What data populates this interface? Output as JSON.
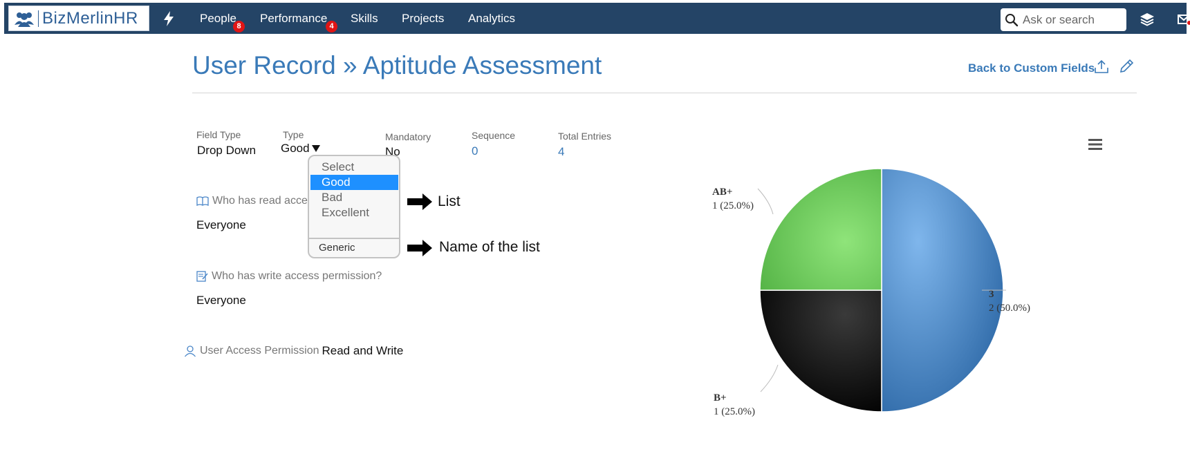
{
  "navbar": {
    "brand": "BizMerlinHR",
    "items": [
      {
        "label": "People",
        "badge": "8"
      },
      {
        "label": "Performance",
        "badge": "4"
      },
      {
        "label": "Skills"
      },
      {
        "label": "Projects"
      },
      {
        "label": "Analytics"
      }
    ],
    "search_placeholder": "Ask or search",
    "bg_color": "#244466"
  },
  "header": {
    "title": "User Record » Aptitude Assessment",
    "back_link": "Back to Custom Fields"
  },
  "field": {
    "field_type_label": "Field Type",
    "field_type_value": "Drop Down",
    "type_label": "Type",
    "type_value": "Good",
    "mandatory_label": "Mandatory",
    "mandatory_value": "No",
    "sequence_label": "Sequence",
    "sequence_value": "0",
    "total_entries_label": "Total Entries",
    "total_entries_value": "4"
  },
  "dropdown": {
    "options": [
      "Select",
      "Good",
      "Bad",
      "Excellent"
    ],
    "selected": "Good",
    "footer": "Generic"
  },
  "annotations": {
    "list": "List",
    "name_of_list": "Name of the list"
  },
  "permissions": {
    "read_label": "Who has read access permission?",
    "read_value": "Everyone",
    "write_label": "Who has write access permission?",
    "write_value": "Everyone",
    "user_access_label": "User Access Permission",
    "user_access_value": "Read and Write"
  },
  "chart_data": {
    "type": "pie",
    "slices": [
      {
        "label": "3",
        "value": 2,
        "display": "2 (50.0%)",
        "color": "#4a86c8"
      },
      {
        "label": "B+",
        "value": 1,
        "display": "1 (25.0%)",
        "color": "#1a1a1a"
      },
      {
        "label": "AB+",
        "value": 1,
        "display": "1 (25.0%)",
        "color": "#6cc65a"
      }
    ],
    "legend": "none"
  }
}
